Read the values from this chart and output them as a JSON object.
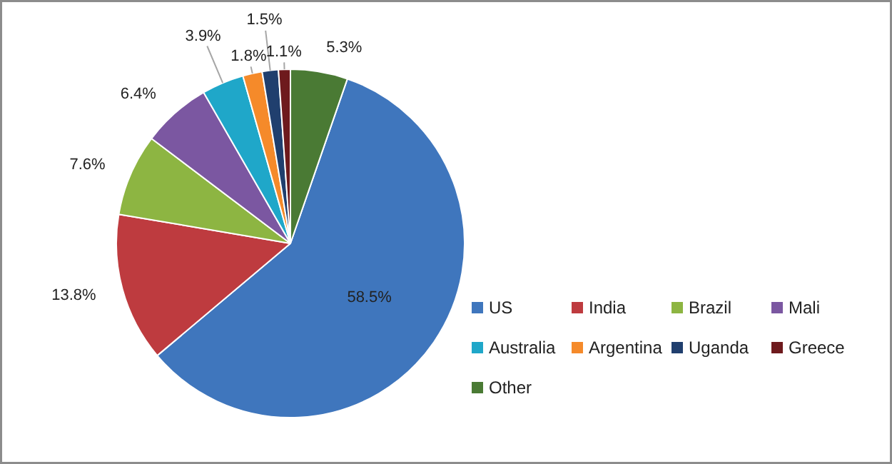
{
  "chart_data": {
    "type": "pie",
    "categories": [
      "US",
      "India",
      "Brazil",
      "Mali",
      "Australia",
      "Argentina",
      "Uganda",
      "Greece",
      "Other"
    ],
    "values": [
      58.5,
      13.8,
      7.6,
      6.4,
      3.9,
      1.8,
      1.5,
      1.1,
      5.3
    ],
    "colors": [
      "#3f76bd",
      "#be3b3f",
      "#8db542",
      "#7b57a1",
      "#1fa7c9",
      "#f58a2a",
      "#203f6e",
      "#6e1a1d",
      "#4a7a34"
    ],
    "value_labels": [
      "58.5%",
      "13.8%",
      "7.6%",
      "6.4%",
      "3.9%",
      "1.8%",
      "1.5%",
      "1.1%",
      "5.3%"
    ],
    "legend": "bottom right"
  }
}
